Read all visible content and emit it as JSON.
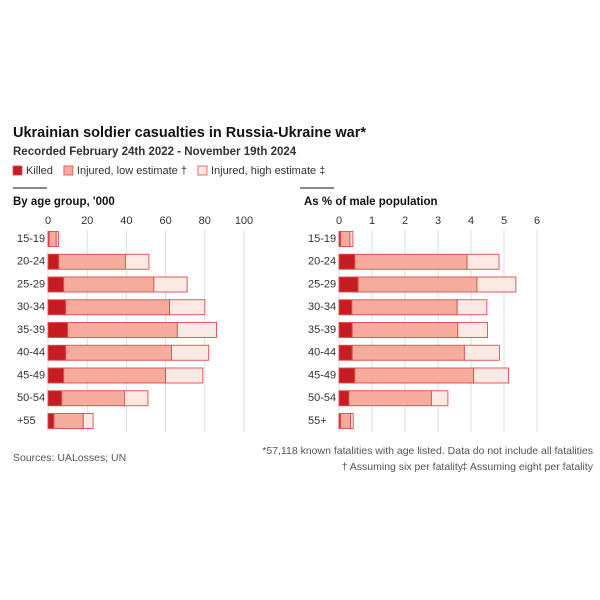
{
  "header": {
    "title": "Ukrainian soldier casualties in Russia-Ukraine war*",
    "subtitle": "Recorded February 24th 2022 - November 19th 2024"
  },
  "notes": {
    "source": "Sources: UALosses; UN",
    "footnote": "*57,118 known fatalities with age listed. Data do not include all fatalities",
    "dagger": "† Assuming six per fatality",
    "ddagger": "‡ Assuming eight per fatality"
  },
  "chart_data": [
    {
      "type": "bar",
      "orientation": "horizontal",
      "stacked": true,
      "title": "By age group, '000",
      "categories": [
        "15-19",
        "20-24",
        "25-29",
        "30-34",
        "35-39",
        "40-44",
        "45-49",
        "50-54",
        "+55"
      ],
      "series": [
        {
          "name": "Killed",
          "color": "#c41e22",
          "values": [
            0.6,
            5.5,
            8,
            9,
            10,
            9,
            8,
            7,
            3
          ]
        },
        {
          "name": "Injured, low estimate †",
          "color": "#f6ab9c",
          "values": [
            3.6,
            34,
            46,
            53,
            56,
            54,
            52,
            32,
            15
          ]
        },
        {
          "name": "Injured, high estimate ‡",
          "color": "#fde9e4",
          "values": [
            1.2,
            12,
            17,
            18,
            20,
            19,
            19,
            12,
            5
          ]
        }
      ],
      "xlim": [
        0,
        100
      ],
      "xticks": [
        0,
        20,
        40,
        60,
        80,
        100
      ],
      "grid": true
    },
    {
      "type": "bar",
      "orientation": "horizontal",
      "stacked": true,
      "title": "As % of male population",
      "categories": [
        "15-19",
        "20-24",
        "25-29",
        "30-34",
        "35-39",
        "40-44",
        "45-49",
        "50-54",
        "55+"
      ],
      "series": [
        {
          "color": "#c41e22",
          "values": [
            0.05,
            0.48,
            0.58,
            0.39,
            0.4,
            0.4,
            0.48,
            0.3,
            0.05
          ]
        },
        {
          "color": "#f6ab9c",
          "values": [
            0.28,
            3.4,
            3.6,
            3.19,
            3.2,
            3.4,
            3.6,
            2.5,
            0.3
          ]
        },
        {
          "color": "#fde9e4",
          "values": [
            0.09,
            0.97,
            1.18,
            0.9,
            0.9,
            1.06,
            1.06,
            0.5,
            0.08
          ]
        }
      ],
      "xlim": [
        0,
        6
      ],
      "xticks": [
        0,
        1,
        2,
        3,
        4,
        5,
        6
      ],
      "grid": true
    }
  ]
}
